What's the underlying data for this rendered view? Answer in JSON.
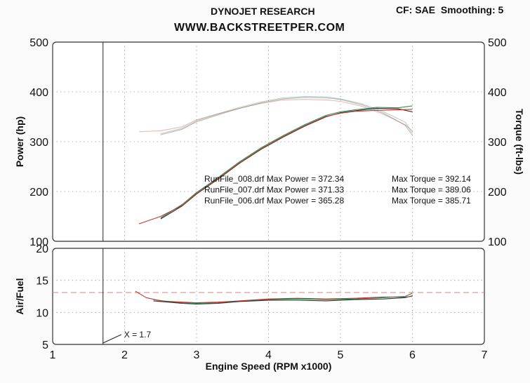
{
  "header": {
    "title": "DYNOJET RESEARCH",
    "subtitle": "WWW.BACKSTREETPER.COM",
    "correction": "CF: SAE",
    "smoothing": "Smoothing: 5"
  },
  "colors": {
    "run_008": "#2e8b57",
    "run_007": "#333333",
    "run_006": "#c0392b",
    "afr_target": "#d98080",
    "grid": "#999999"
  },
  "chart_data": [
    {
      "type": "line",
      "panel": "power-torque",
      "ylabel": "Power (hp)",
      "y2label": "Torque (ft-lbs)",
      "ylim": [
        100,
        500
      ],
      "y2lim": [
        100,
        500
      ],
      "xlim": [
        1,
        7
      ],
      "yticks": [
        100,
        200,
        300,
        400,
        500
      ],
      "y2ticks": [
        100,
        200,
        300,
        400,
        500
      ],
      "grid": true,
      "cursor_x": 1.7,
      "annotations": [
        {
          "file": "RunFile_008.drf",
          "power_label": "Max Power =",
          "power": "372.34",
          "torque_label": "Max Torque =",
          "torque": "392.14"
        },
        {
          "file": "RunFile_007.drf",
          "power_label": "Max Power =",
          "power": "371.33",
          "torque_label": "Max Torque =",
          "torque": "389.06"
        },
        {
          "file": "RunFile_006.drf",
          "power_label": "Max Power =",
          "power": "365.28",
          "torque_label": "Max Torque =",
          "torque": "385.71"
        }
      ],
      "series": [
        {
          "kind": "power",
          "run": "008",
          "x": [
            2.5,
            2.8,
            3.0,
            3.3,
            3.6,
            3.9,
            4.2,
            4.5,
            4.8,
            5.0,
            5.2,
            5.5,
            5.8,
            6.0
          ],
          "y": [
            147,
            174,
            198,
            228,
            260,
            288,
            312,
            334,
            353,
            360,
            364,
            369,
            368,
            372
          ]
        },
        {
          "kind": "power",
          "run": "007",
          "x": [
            2.5,
            2.8,
            3.0,
            3.3,
            3.6,
            3.9,
            4.2,
            4.5,
            4.8,
            5.0,
            5.2,
            5.5,
            5.8,
            6.0
          ],
          "y": [
            145,
            171,
            195,
            225,
            257,
            285,
            309,
            331,
            350,
            358,
            362,
            367,
            366,
            360
          ]
        },
        {
          "kind": "power",
          "run": "006",
          "x": [
            2.2,
            2.5,
            2.8,
            3.0,
            3.3,
            3.6,
            3.9,
            4.2,
            4.5,
            4.8,
            5.0,
            5.2,
            5.5,
            5.8,
            6.0
          ],
          "y": [
            135,
            150,
            172,
            196,
            226,
            258,
            286,
            310,
            332,
            351,
            357,
            361,
            363,
            364,
            365
          ]
        },
        {
          "kind": "torque",
          "run": "008",
          "x": [
            2.5,
            2.8,
            3.0,
            3.3,
            3.6,
            3.9,
            4.2,
            4.5,
            4.8,
            5.0,
            5.3,
            5.6,
            5.9,
            6.0
          ],
          "y": [
            316,
            327,
            342,
            356,
            369,
            380,
            388,
            391,
            390,
            386,
            376,
            360,
            339,
            317
          ]
        },
        {
          "kind": "torque",
          "run": "007",
          "x": [
            2.5,
            2.8,
            3.0,
            3.3,
            3.6,
            3.9,
            4.2,
            4.5,
            4.8,
            5.0,
            5.3,
            5.6,
            5.9,
            6.0
          ],
          "y": [
            314,
            325,
            340,
            354,
            367,
            378,
            386,
            389,
            388,
            385,
            374,
            357,
            333,
            313
          ]
        },
        {
          "kind": "torque",
          "run": "006",
          "x": [
            2.2,
            2.5,
            2.8,
            3.0,
            3.3,
            3.6,
            3.9,
            4.2,
            4.5,
            4.8,
            5.0,
            5.3,
            5.6,
            5.9,
            6.0
          ],
          "y": [
            320,
            322,
            330,
            344,
            356,
            367,
            377,
            384,
            385,
            384,
            381,
            371,
            355,
            334,
            322
          ]
        }
      ]
    },
    {
      "type": "line",
      "panel": "air-fuel",
      "ylabel": "Air/Fuel",
      "xlabel": "Engine Speed (RPM x1000)",
      "ylim": [
        5,
        20
      ],
      "xlim": [
        1,
        7
      ],
      "yticks": [
        5,
        10,
        15,
        20
      ],
      "xticks": [
        1,
        2,
        3,
        4,
        5,
        6,
        7
      ],
      "grid": true,
      "target": 13.1,
      "cursor_x": 1.7,
      "cursor_label": "X = 1.7",
      "series": [
        {
          "run": "008",
          "x": [
            2.4,
            2.6,
            2.8,
            3.0,
            3.3,
            3.6,
            4.0,
            4.4,
            4.8,
            5.2,
            5.6,
            5.9,
            6.0
          ],
          "y": [
            12.0,
            11.7,
            11.5,
            11.4,
            11.5,
            11.8,
            12.0,
            12.1,
            12.0,
            12.1,
            12.3,
            12.5,
            13.0
          ]
        },
        {
          "run": "007",
          "x": [
            2.4,
            2.6,
            2.8,
            3.0,
            3.3,
            3.6,
            4.0,
            4.4,
            4.8,
            5.2,
            5.6,
            5.9,
            6.0
          ],
          "y": [
            11.8,
            11.6,
            11.4,
            11.3,
            11.4,
            11.7,
            11.9,
            11.9,
            11.8,
            12.0,
            12.1,
            12.3,
            12.6
          ]
        },
        {
          "run": "006",
          "x": [
            2.15,
            2.3,
            2.5,
            2.8,
            3.0,
            3.3,
            3.6,
            4.0,
            4.4,
            4.8,
            5.2,
            5.6,
            5.9,
            6.0
          ],
          "y": [
            13.3,
            12.3,
            11.8,
            11.6,
            11.5,
            11.6,
            11.8,
            12.1,
            12.2,
            12.1,
            12.2,
            12.4,
            12.4,
            12.5
          ]
        }
      ]
    }
  ]
}
